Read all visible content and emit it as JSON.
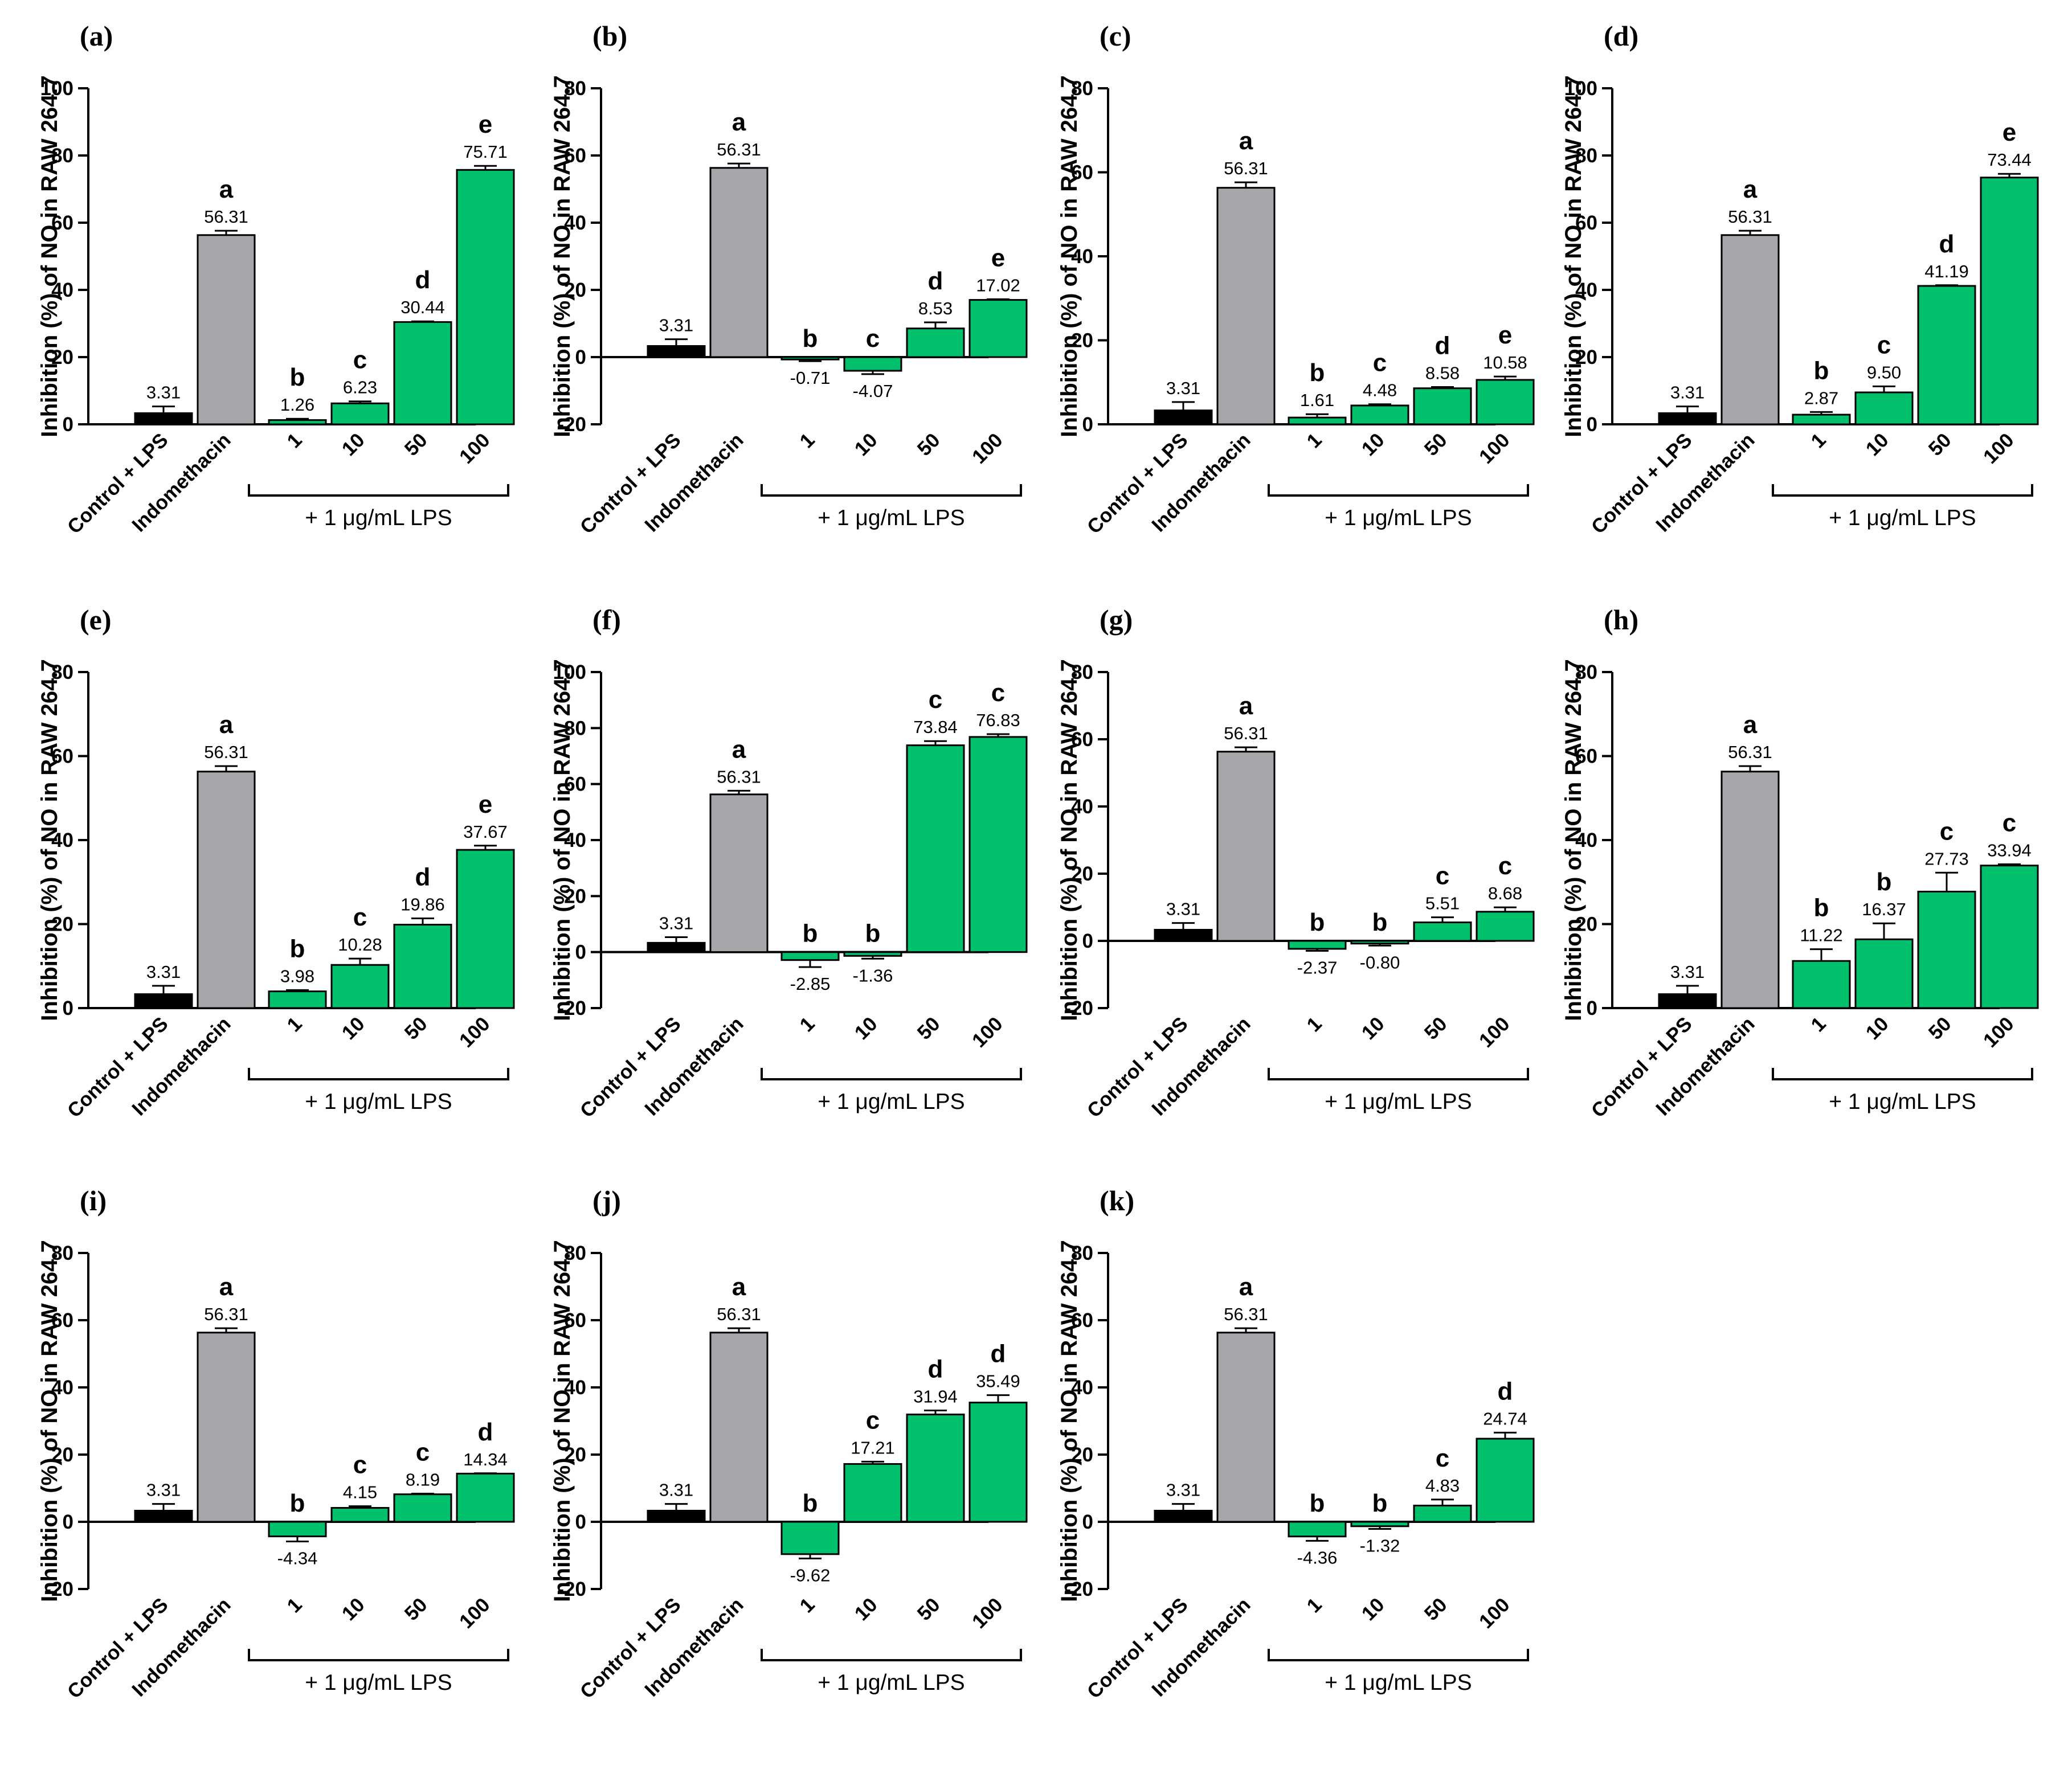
{
  "colors": {
    "control": "#000000",
    "indomethacin": "#a6a6ab",
    "sample": "#00c06c",
    "axis": "#000000"
  },
  "chart_data": [
    {
      "type": "bar",
      "panel_label": "(a)",
      "ylabel": "Inhibition (%) of NO in RAW 264.7",
      "ylim": [
        0,
        100
      ],
      "yticks": [
        0,
        20,
        40,
        60,
        80,
        100
      ],
      "categories": [
        "Control + LPS",
        "Indomethacin",
        "1",
        "10",
        "50",
        "100"
      ],
      "values": [
        3.31,
        56.31,
        1.26,
        6.23,
        30.44,
        75.71
      ],
      "value_labels": [
        "3.31",
        "56.31",
        "1.26",
        "6.23",
        "30.44",
        "75.71"
      ],
      "errors": [
        2.0,
        1.3,
        0.4,
        0.6,
        0.2,
        1.2
      ],
      "letters": [
        "",
        "a",
        "b",
        "c",
        "d",
        "e"
      ],
      "bracket_label": "+ 1 μg/mL LPS"
    },
    {
      "type": "bar",
      "panel_label": "(b)",
      "ylabel": "Inhibition (%) of NO in RAW 264.7",
      "ylim": [
        -20,
        80
      ],
      "yticks": [
        -20,
        0,
        20,
        40,
        60,
        80
      ],
      "categories": [
        "Control + LPS",
        "Indomethacin",
        "1",
        "10",
        "50",
        "100"
      ],
      "values": [
        3.31,
        56.31,
        -0.71,
        -4.07,
        8.53,
        17.02
      ],
      "value_labels": [
        "3.31",
        "56.31",
        "-0.71",
        "-4.07",
        "8.53",
        "17.02"
      ],
      "errors": [
        2.0,
        1.3,
        0.5,
        1.0,
        1.8,
        0.2
      ],
      "letters": [
        "",
        "a",
        "b",
        "c",
        "d",
        "e"
      ],
      "bracket_label": "+ 1 μg/mL LPS"
    },
    {
      "type": "bar",
      "panel_label": "(c)",
      "ylabel": "Inhibition (%) of NO in RAW 264.7",
      "ylim": [
        0,
        80
      ],
      "yticks": [
        0,
        20,
        40,
        60,
        80
      ],
      "categories": [
        "Control + LPS",
        "Indomethacin",
        "1",
        "10",
        "50",
        "100"
      ],
      "values": [
        3.31,
        56.31,
        1.61,
        4.48,
        8.58,
        10.58
      ],
      "value_labels": [
        "3.31",
        "56.31",
        "1.61",
        "4.48",
        "8.58",
        "10.58"
      ],
      "errors": [
        2.0,
        1.3,
        0.8,
        0.3,
        0.3,
        0.8
      ],
      "letters": [
        "",
        "a",
        "b",
        "c",
        "d",
        "e"
      ],
      "bracket_label": "+ 1 μg/mL LPS"
    },
    {
      "type": "bar",
      "panel_label": "(d)",
      "ylabel": "Inhibition (%) of NO in RAW 264.7",
      "ylim": [
        0,
        100
      ],
      "yticks": [
        0,
        20,
        40,
        60,
        80,
        100
      ],
      "categories": [
        "Control + LPS",
        "Indomethacin",
        "1",
        "10",
        "50",
        "100"
      ],
      "values": [
        3.31,
        56.31,
        2.87,
        9.5,
        41.19,
        73.44
      ],
      "value_labels": [
        "3.31",
        "56.31",
        "2.87",
        "9.50",
        "41.19",
        "73.44"
      ],
      "errors": [
        2.0,
        1.3,
        0.8,
        1.8,
        0.2,
        1.1
      ],
      "letters": [
        "",
        "a",
        "b",
        "c",
        "d",
        "e"
      ],
      "bracket_label": "+ 1 μg/mL LPS"
    },
    {
      "type": "bar",
      "panel_label": "(e)",
      "ylabel": "Inhibition (%) of NO in RAW 264.7",
      "ylim": [
        0,
        80
      ],
      "yticks": [
        0,
        20,
        40,
        60,
        80
      ],
      "categories": [
        "Control + LPS",
        "Indomethacin",
        "1",
        "10",
        "50",
        "100"
      ],
      "values": [
        3.31,
        56.31,
        3.98,
        10.28,
        19.86,
        37.67
      ],
      "value_labels": [
        "3.31",
        "56.31",
        "3.98",
        "10.28",
        "19.86",
        "37.67"
      ],
      "errors": [
        2.0,
        1.3,
        0.3,
        1.5,
        1.5,
        1.0
      ],
      "letters": [
        "",
        "a",
        "b",
        "c",
        "d",
        "e"
      ],
      "bracket_label": "+ 1 μg/mL LPS"
    },
    {
      "type": "bar",
      "panel_label": "(f)",
      "ylabel": "Inhibition (%) of NO in RAW 264.7",
      "ylim": [
        -20,
        100
      ],
      "yticks": [
        -20,
        0,
        20,
        40,
        60,
        80,
        100
      ],
      "categories": [
        "Control + LPS",
        "Indomethacin",
        "1",
        "10",
        "50",
        "100"
      ],
      "values": [
        3.31,
        56.31,
        -2.85,
        -1.36,
        73.84,
        76.83
      ],
      "value_labels": [
        "3.31",
        "56.31",
        "-2.85",
        "-1.36",
        "73.84",
        "76.83"
      ],
      "errors": [
        2.0,
        1.3,
        2.5,
        1.0,
        1.5,
        1.0
      ],
      "letters": [
        "",
        "a",
        "b",
        "b",
        "c",
        "c"
      ],
      "bracket_label": "+ 1 μg/mL LPS"
    },
    {
      "type": "bar",
      "panel_label": "(g)",
      "ylabel": "Inhibition (%) of NO in RAW 264.7",
      "ylim": [
        -20,
        80
      ],
      "yticks": [
        -20,
        0,
        20,
        40,
        60,
        80
      ],
      "categories": [
        "Control + LPS",
        "Indomethacin",
        "1",
        "10",
        "50",
        "100"
      ],
      "values": [
        3.31,
        56.31,
        -2.37,
        -0.8,
        5.51,
        8.68
      ],
      "value_labels": [
        "3.31",
        "56.31",
        "-2.37",
        "-0.80",
        "5.51",
        "8.68"
      ],
      "errors": [
        2.0,
        1.3,
        0.6,
        0.6,
        1.5,
        1.3
      ],
      "letters": [
        "",
        "a",
        "b",
        "b",
        "c",
        "c"
      ],
      "bracket_label": "+ 1 μg/mL LPS"
    },
    {
      "type": "bar",
      "panel_label": "(h)",
      "ylabel": "Inhibition (%) of NO in RAW 264.7",
      "ylim": [
        0,
        80
      ],
      "yticks": [
        0,
        20,
        40,
        60,
        80
      ],
      "categories": [
        "Control + LPS",
        "Indomethacin",
        "1",
        "10",
        "50",
        "100"
      ],
      "values": [
        3.31,
        56.31,
        11.22,
        16.37,
        27.73,
        33.94
      ],
      "value_labels": [
        "3.31",
        "56.31",
        "11.22",
        "16.37",
        "27.73",
        "33.94"
      ],
      "errors": [
        2.0,
        1.3,
        2.8,
        3.8,
        4.5,
        0.3
      ],
      "letters": [
        "",
        "a",
        "b",
        "b",
        "c",
        "c"
      ],
      "bracket_label": "+ 1 μg/mL LPS"
    },
    {
      "type": "bar",
      "panel_label": "(i)",
      "ylabel": "Inhibition (%) of NO in RAW 264.7",
      "ylim": [
        -20,
        80
      ],
      "yticks": [
        -20,
        0,
        20,
        40,
        60,
        80
      ],
      "categories": [
        "Control + LPS",
        "Indomethacin",
        "1",
        "10",
        "50",
        "100"
      ],
      "values": [
        3.31,
        56.31,
        -4.34,
        4.15,
        8.19,
        14.34
      ],
      "value_labels": [
        "3.31",
        "56.31",
        "-4.34",
        "4.15",
        "8.19",
        "14.34"
      ],
      "errors": [
        2.0,
        1.3,
        1.5,
        0.5,
        0.2,
        0.1
      ],
      "letters": [
        "",
        "a",
        "b",
        "c",
        "c",
        "d"
      ],
      "bracket_label": "+ 1 μg/mL LPS"
    },
    {
      "type": "bar",
      "panel_label": "(j)",
      "ylabel": "Inhibition (%) of NO in RAW 264.7",
      "ylim": [
        -20,
        80
      ],
      "yticks": [
        -20,
        0,
        20,
        40,
        60,
        80
      ],
      "categories": [
        "Control + LPS",
        "Indomethacin",
        "1",
        "10",
        "50",
        "100"
      ],
      "values": [
        3.31,
        56.31,
        -9.62,
        17.21,
        31.94,
        35.49
      ],
      "value_labels": [
        "3.31",
        "56.31",
        "-9.62",
        "17.21",
        "31.94",
        "35.49"
      ],
      "errors": [
        2.0,
        1.3,
        1.3,
        0.7,
        1.2,
        2.2
      ],
      "letters": [
        "",
        "a",
        "b",
        "c",
        "d",
        "d"
      ],
      "bracket_label": "+ 1 μg/mL LPS"
    },
    {
      "type": "bar",
      "panel_label": "(k)",
      "ylabel": "Inhibition (%) of NO in RAW 264.7",
      "ylim": [
        -20,
        80
      ],
      "yticks": [
        -20,
        0,
        20,
        40,
        60,
        80
      ],
      "categories": [
        "Control + LPS",
        "Indomethacin",
        "1",
        "10",
        "50",
        "100"
      ],
      "values": [
        3.31,
        56.31,
        -4.36,
        -1.32,
        4.83,
        24.74
      ],
      "value_labels": [
        "3.31",
        "56.31",
        "-4.36",
        "-1.32",
        "4.83",
        "24.74"
      ],
      "errors": [
        2.0,
        1.3,
        1.3,
        0.8,
        1.8,
        1.8
      ],
      "letters": [
        "",
        "a",
        "b",
        "b",
        "c",
        "d"
      ],
      "bracket_label": "+ 1 μg/mL LPS"
    }
  ]
}
